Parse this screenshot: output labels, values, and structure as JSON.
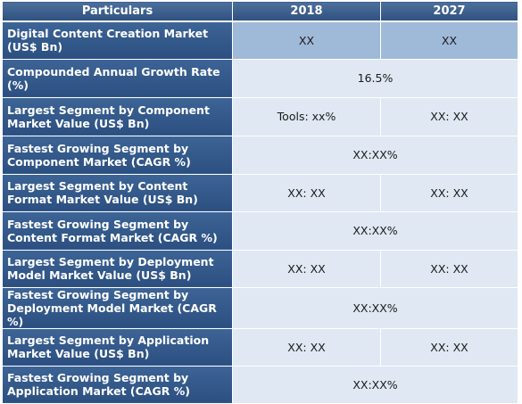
{
  "header": {
    "particulars": "Particulars",
    "year1": "2018",
    "year2": "2027"
  },
  "rows": [
    {
      "label": "Digital Content Creation Market (US$ Bn)",
      "v2018": "XX",
      "v2027": "XX"
    },
    {
      "label": "Compounded Annual Growth Rate (%)",
      "merged": "16.5%"
    },
    {
      "label": "Largest Segment by Component Market Value (US$ Bn)",
      "v2018": "Tools: xx%",
      "v2027": "XX: XX"
    },
    {
      "label": "Fastest Growing Segment by Component Market (CAGR %)",
      "merged": "XX:XX%"
    },
    {
      "label": "Largest Segment by Content Format Market Value (US$ Bn)",
      "v2018": "XX: XX",
      "v2027": "XX: XX"
    },
    {
      "label": "Fastest Growing Segment by Content Format Market (CAGR %)",
      "merged": "XX:XX%"
    },
    {
      "label": "Largest Segment by Deployment Model Market Value (US$ Bn)",
      "v2018": "XX: XX",
      "v2027": "XX: XX"
    },
    {
      "label": "Fastest Growing Segment by Deployment Model Market (CAGR %)",
      "merged": "XX:XX%"
    },
    {
      "label": "Largest Segment by Application Market Value (US$ Bn)",
      "v2018": "XX: XX",
      "v2027": "XX: XX"
    },
    {
      "label": "Fastest Growing Segment by Application Market (CAGR %)",
      "merged": "XX:XX%"
    }
  ]
}
